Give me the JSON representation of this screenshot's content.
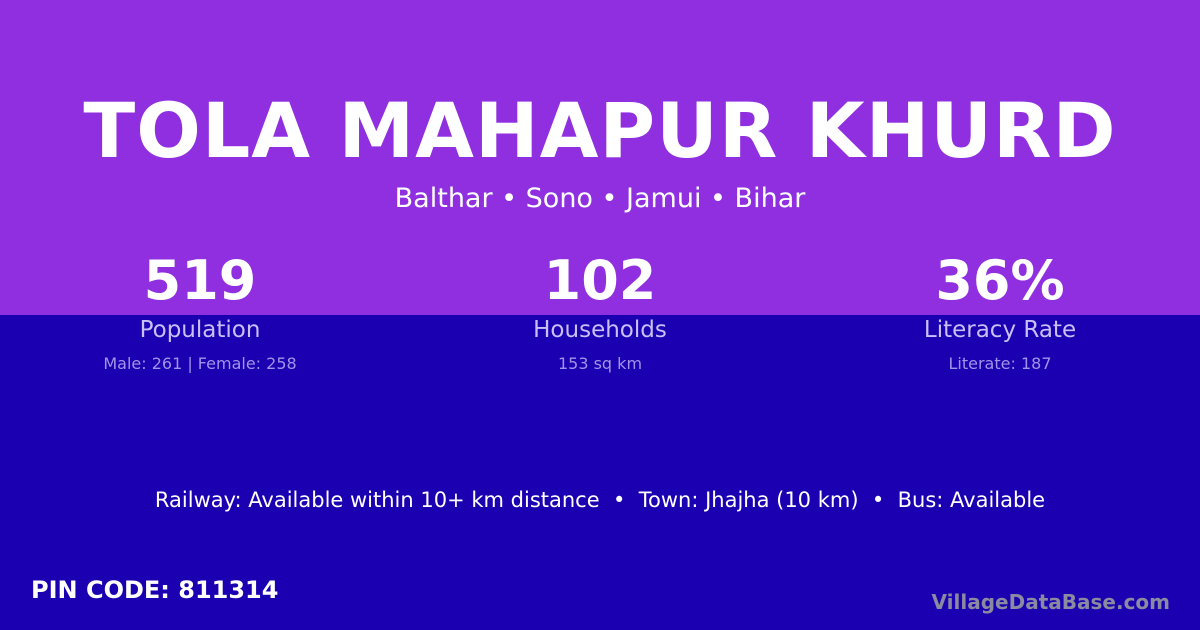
{
  "village": {
    "name": "TOLA MAHAPUR KHURD",
    "location": "Balthar • Sono • Jamui • Bihar"
  },
  "stats": [
    {
      "value": "519",
      "label": "Population",
      "detail": "Male: 261 | Female: 258"
    },
    {
      "value": "102",
      "label": "Households",
      "detail": "153 sq km"
    },
    {
      "value": "36%",
      "label": "Literacy Rate",
      "detail": "Literate: 187"
    }
  ],
  "connectivity": "Railway: Available within 10+ km distance  •  Town: Jhajha (10 km)  •  Bus: Available",
  "pin_code": "PIN CODE: 811314",
  "watermark": "VillageDataBase.com",
  "colors": {
    "top_bg": "#8f2fe0",
    "bottom_bg": "#1a00b0"
  }
}
